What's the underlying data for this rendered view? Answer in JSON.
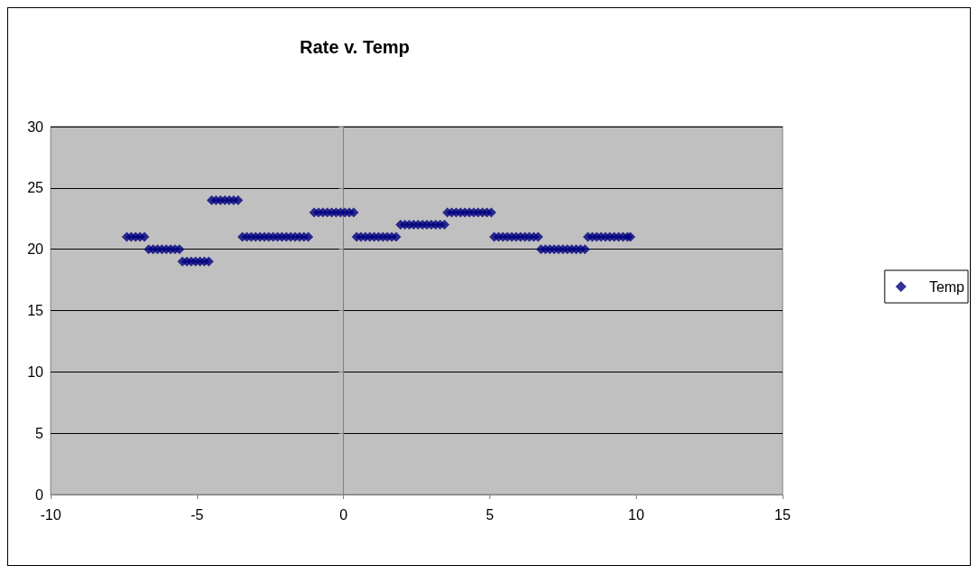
{
  "chart_data": {
    "type": "scatter",
    "title": "Rate v. Temp",
    "x": [
      -7.4,
      -7.25,
      -7.1,
      -6.95,
      -6.8,
      -6.65,
      -6.5,
      -6.35,
      -6.2,
      -6.05,
      -5.9,
      -5.75,
      -5.6,
      -5.5,
      -5.35,
      -5.2,
      -5.05,
      -4.9,
      -4.75,
      -4.6,
      -4.5,
      -4.35,
      -4.2,
      -4.05,
      -3.9,
      -3.75,
      -3.6,
      -3.45,
      -3.3,
      -3.15,
      -3.0,
      -2.85,
      -2.7,
      -2.55,
      -2.4,
      -2.25,
      -2.1,
      -1.95,
      -1.8,
      -1.65,
      -1.5,
      -1.35,
      -1.2,
      -1.0,
      -0.85,
      -0.7,
      -0.55,
      -0.4,
      -0.25,
      -0.1,
      0.05,
      0.2,
      0.35,
      0.45,
      0.6,
      0.75,
      0.9,
      1.05,
      1.2,
      1.35,
      1.5,
      1.65,
      1.8,
      1.95,
      2.1,
      2.25,
      2.4,
      2.55,
      2.7,
      2.85,
      3.0,
      3.15,
      3.3,
      3.45,
      3.55,
      3.7,
      3.85,
      4.0,
      4.15,
      4.3,
      4.45,
      4.6,
      4.75,
      4.9,
      5.05,
      5.15,
      5.3,
      5.45,
      5.6,
      5.75,
      5.9,
      6.05,
      6.2,
      6.35,
      6.5,
      6.65,
      6.75,
      6.9,
      7.05,
      7.2,
      7.35,
      7.5,
      7.65,
      7.8,
      7.95,
      8.1,
      8.25,
      8.35,
      8.5,
      8.65,
      8.8,
      8.95,
      9.1,
      9.25,
      9.4,
      9.55,
      9.7,
      9.8
    ],
    "series": [
      {
        "name": "Temp",
        "color": "#000080",
        "values": [
          21,
          21,
          21,
          21,
          21,
          20,
          20,
          20,
          20,
          20,
          20,
          20,
          20,
          19,
          19,
          19,
          19,
          19,
          19,
          19,
          24,
          24,
          24,
          24,
          24,
          24,
          24,
          21,
          21,
          21,
          21,
          21,
          21,
          21,
          21,
          21,
          21,
          21,
          21,
          21,
          21,
          21,
          21,
          23,
          23,
          23,
          23,
          23,
          23,
          23,
          23,
          23,
          23,
          21,
          21,
          21,
          21,
          21,
          21,
          21,
          21,
          21,
          21,
          22,
          22,
          22,
          22,
          22,
          22,
          22,
          22,
          22,
          22,
          22,
          23,
          23,
          23,
          23,
          23,
          23,
          23,
          23,
          23,
          23,
          23,
          21,
          21,
          21,
          21,
          21,
          21,
          21,
          21,
          21,
          21,
          21,
          20,
          20,
          20,
          20,
          20,
          20,
          20,
          20,
          20,
          20,
          20,
          21,
          21,
          21,
          21,
          21,
          21,
          21,
          21,
          21,
          21,
          21
        ]
      }
    ],
    "xlim": [
      -10,
      15
    ],
    "xticks": [
      -10,
      -5,
      0,
      5,
      10,
      15
    ],
    "ylim": [
      0,
      30
    ],
    "yticks": [
      0,
      5,
      10,
      15,
      20,
      25,
      30
    ],
    "grid": "y",
    "legend": "right",
    "marker": "diamond"
  }
}
